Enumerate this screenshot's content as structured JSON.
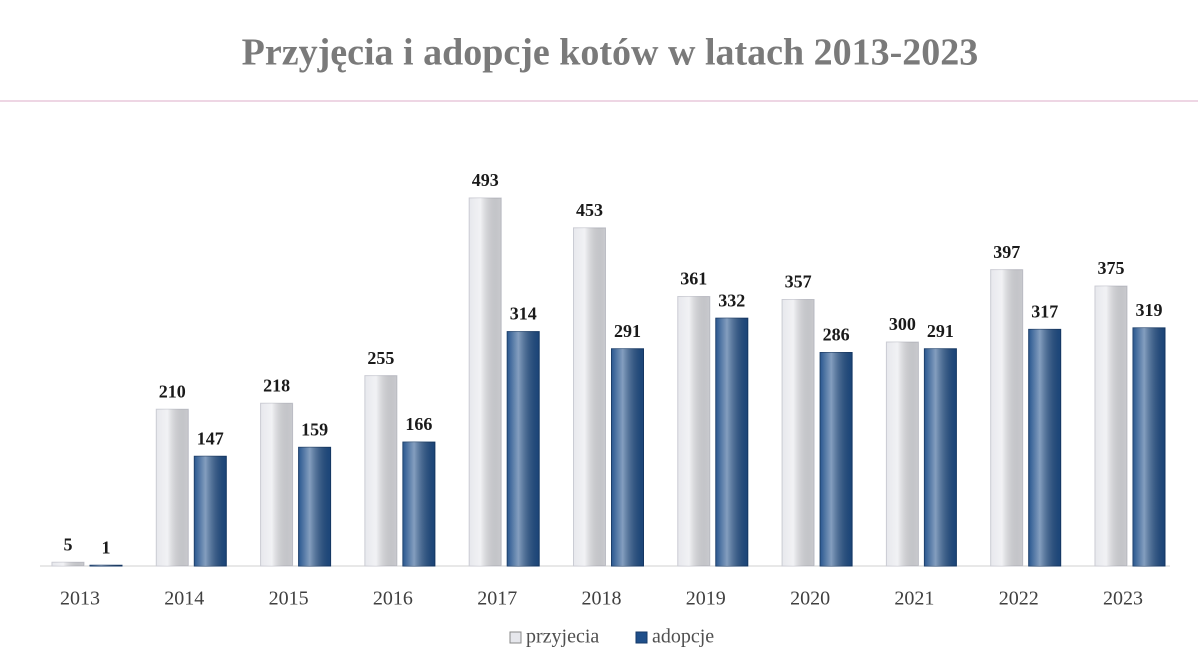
{
  "chart_data": {
    "type": "bar",
    "title": "Przyjęcia i adopcje kotów w latach 2013-2023",
    "categories": [
      "2013",
      "2014",
      "2015",
      "2016",
      "2017",
      "2018",
      "2019",
      "2020",
      "2021",
      "2022",
      "2023"
    ],
    "series": [
      {
        "name": "przyjecia",
        "color": "#e6e7ec",
        "values": [
          5,
          210,
          218,
          255,
          493,
          453,
          361,
          357,
          300,
          397,
          375
        ]
      },
      {
        "name": "adopcje",
        "color": "#1f4f8a",
        "values": [
          1,
          147,
          159,
          166,
          314,
          291,
          332,
          286,
          291,
          317,
          319
        ]
      }
    ]
  }
}
